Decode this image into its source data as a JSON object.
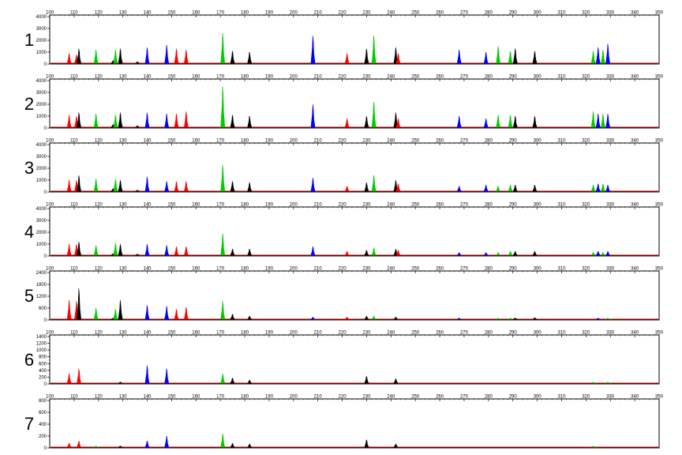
{
  "colors": {
    "red": "#ff0000",
    "green": "#00cc00",
    "blue": "#0000ff",
    "black": "#000000",
    "baseline": "#cc0000"
  },
  "chart_data": [
    {
      "type": "area",
      "panel": "1",
      "x_ticks": [
        100,
        110,
        120,
        130,
        140,
        150,
        160,
        170,
        180,
        190,
        200,
        210,
        220,
        230,
        240,
        250,
        260,
        270,
        280,
        290,
        300,
        310,
        320,
        330,
        340,
        350
      ],
      "y_ticks": [
        0,
        1000,
        2000,
        3000,
        4000
      ],
      "ylim": [
        0,
        4000
      ],
      "xlim": [
        100,
        350
      ],
      "peaks": [
        [
          108,
          900,
          "red"
        ],
        [
          111,
          800,
          "red"
        ],
        [
          112,
          1300,
          "black"
        ],
        [
          119,
          1200,
          "green"
        ],
        [
          126,
          300,
          "black"
        ],
        [
          127,
          1200,
          "green"
        ],
        [
          129,
          1300,
          "black"
        ],
        [
          136,
          200,
          "black"
        ],
        [
          140,
          1400,
          "blue"
        ],
        [
          148,
          1600,
          "blue"
        ],
        [
          152,
          1300,
          "red"
        ],
        [
          156,
          1200,
          "red"
        ],
        [
          171,
          2600,
          "green"
        ],
        [
          175,
          1100,
          "black"
        ],
        [
          182,
          1000,
          "black"
        ],
        [
          208,
          2400,
          "blue"
        ],
        [
          222,
          900,
          "red"
        ],
        [
          230,
          1300,
          "black"
        ],
        [
          233,
          2400,
          "green"
        ],
        [
          242,
          1400,
          "black"
        ],
        [
          243,
          900,
          "red"
        ],
        [
          268,
          1200,
          "blue"
        ],
        [
          279,
          1000,
          "blue"
        ],
        [
          284,
          1500,
          "green"
        ],
        [
          289,
          1100,
          "green"
        ],
        [
          291,
          1300,
          "black"
        ],
        [
          299,
          1100,
          "black"
        ],
        [
          323,
          1100,
          "green"
        ],
        [
          325,
          1400,
          "blue"
        ],
        [
          327,
          1200,
          "green"
        ],
        [
          329,
          1700,
          "blue"
        ]
      ]
    },
    {
      "type": "area",
      "panel": "2",
      "x_ticks": [
        100,
        110,
        120,
        130,
        140,
        150,
        160,
        170,
        180,
        190,
        200,
        210,
        220,
        230,
        240,
        250,
        260,
        270,
        280,
        290,
        300,
        310,
        320,
        330,
        340,
        350
      ],
      "y_ticks": [
        0,
        1000,
        2000,
        3000,
        4000
      ],
      "ylim": [
        0,
        4000
      ],
      "xlim": [
        100,
        350
      ],
      "peaks": [
        [
          108,
          1100,
          "red"
        ],
        [
          111,
          1000,
          "red"
        ],
        [
          112,
          1300,
          "black"
        ],
        [
          119,
          1200,
          "green"
        ],
        [
          126,
          300,
          "black"
        ],
        [
          127,
          1100,
          "green"
        ],
        [
          129,
          1300,
          "black"
        ],
        [
          136,
          200,
          "black"
        ],
        [
          140,
          1300,
          "blue"
        ],
        [
          148,
          1200,
          "blue"
        ],
        [
          152,
          1200,
          "red"
        ],
        [
          156,
          1400,
          "red"
        ],
        [
          171,
          3500,
          "green"
        ],
        [
          175,
          1100,
          "black"
        ],
        [
          182,
          1000,
          "black"
        ],
        [
          208,
          2000,
          "blue"
        ],
        [
          222,
          800,
          "red"
        ],
        [
          230,
          1000,
          "black"
        ],
        [
          233,
          2200,
          "green"
        ],
        [
          242,
          1300,
          "black"
        ],
        [
          243,
          800,
          "red"
        ],
        [
          268,
          1000,
          "blue"
        ],
        [
          279,
          800,
          "blue"
        ],
        [
          284,
          1100,
          "green"
        ],
        [
          289,
          1100,
          "green"
        ],
        [
          291,
          1000,
          "black"
        ],
        [
          299,
          1000,
          "black"
        ],
        [
          323,
          1400,
          "green"
        ],
        [
          325,
          1200,
          "blue"
        ],
        [
          327,
          1200,
          "green"
        ],
        [
          329,
          1200,
          "blue"
        ]
      ]
    },
    {
      "type": "area",
      "panel": "3",
      "x_ticks": [
        100,
        110,
        120,
        130,
        140,
        150,
        160,
        170,
        180,
        190,
        200,
        210,
        220,
        230,
        240,
        250,
        260,
        270,
        280,
        290,
        300,
        310,
        320,
        330,
        340,
        350
      ],
      "y_ticks": [
        0,
        1000,
        2000,
        3000,
        4000
      ],
      "ylim": [
        0,
        4000
      ],
      "xlim": [
        100,
        350
      ],
      "peaks": [
        [
          108,
          1000,
          "red"
        ],
        [
          111,
          1000,
          "red"
        ],
        [
          112,
          1400,
          "black"
        ],
        [
          119,
          1100,
          "green"
        ],
        [
          126,
          300,
          "black"
        ],
        [
          127,
          1100,
          "green"
        ],
        [
          129,
          1000,
          "black"
        ],
        [
          136,
          150,
          "black"
        ],
        [
          140,
          1300,
          "blue"
        ],
        [
          148,
          900,
          "blue"
        ],
        [
          152,
          900,
          "red"
        ],
        [
          156,
          900,
          "red"
        ],
        [
          171,
          2300,
          "green"
        ],
        [
          175,
          900,
          "black"
        ],
        [
          182,
          800,
          "black"
        ],
        [
          208,
          1200,
          "blue"
        ],
        [
          222,
          500,
          "red"
        ],
        [
          230,
          800,
          "black"
        ],
        [
          233,
          1400,
          "green"
        ],
        [
          242,
          1000,
          "black"
        ],
        [
          243,
          700,
          "red"
        ],
        [
          268,
          500,
          "blue"
        ],
        [
          279,
          600,
          "blue"
        ],
        [
          284,
          500,
          "green"
        ],
        [
          289,
          600,
          "green"
        ],
        [
          291,
          600,
          "black"
        ],
        [
          299,
          600,
          "black"
        ],
        [
          323,
          600,
          "green"
        ],
        [
          325,
          700,
          "blue"
        ],
        [
          327,
          700,
          "green"
        ],
        [
          329,
          600,
          "blue"
        ]
      ]
    },
    {
      "type": "area",
      "panel": "4",
      "x_ticks": [
        100,
        110,
        120,
        130,
        140,
        150,
        160,
        170,
        180,
        190,
        200,
        210,
        220,
        230,
        240,
        250,
        260,
        270,
        280,
        290,
        300,
        310,
        320,
        330,
        340,
        350
      ],
      "y_ticks": [
        0,
        1000,
        2000,
        3000,
        4000
      ],
      "ylim": [
        0,
        4000
      ],
      "xlim": [
        100,
        350
      ],
      "peaks": [
        [
          108,
          1000,
          "red"
        ],
        [
          111,
          1000,
          "red"
        ],
        [
          112,
          1200,
          "black"
        ],
        [
          119,
          900,
          "green"
        ],
        [
          126,
          200,
          "black"
        ],
        [
          127,
          1100,
          "green"
        ],
        [
          129,
          1000,
          "black"
        ],
        [
          136,
          100,
          "black"
        ],
        [
          140,
          1000,
          "blue"
        ],
        [
          148,
          900,
          "blue"
        ],
        [
          152,
          800,
          "red"
        ],
        [
          156,
          800,
          "red"
        ],
        [
          171,
          1900,
          "green"
        ],
        [
          175,
          600,
          "black"
        ],
        [
          182,
          600,
          "black"
        ],
        [
          208,
          800,
          "blue"
        ],
        [
          222,
          400,
          "red"
        ],
        [
          230,
          500,
          "black"
        ],
        [
          233,
          700,
          "green"
        ],
        [
          242,
          600,
          "black"
        ],
        [
          243,
          500,
          "red"
        ],
        [
          268,
          300,
          "blue"
        ],
        [
          279,
          300,
          "blue"
        ],
        [
          284,
          300,
          "green"
        ],
        [
          289,
          400,
          "green"
        ],
        [
          291,
          400,
          "black"
        ],
        [
          299,
          400,
          "black"
        ],
        [
          323,
          300,
          "green"
        ],
        [
          325,
          400,
          "blue"
        ],
        [
          327,
          300,
          "green"
        ],
        [
          329,
          400,
          "blue"
        ]
      ]
    },
    {
      "type": "area",
      "panel": "5",
      "x_ticks": [
        100,
        110,
        120,
        130,
        140,
        150,
        160,
        170,
        180,
        190,
        200,
        210,
        220,
        230,
        240,
        250,
        260,
        270,
        280,
        290,
        300,
        310,
        320,
        330,
        340,
        350
      ],
      "y_ticks": [
        0,
        600,
        1200,
        1800,
        2400
      ],
      "ylim": [
        0,
        2400
      ],
      "xlim": [
        100,
        350
      ],
      "peaks": [
        [
          108,
          1000,
          "red"
        ],
        [
          111,
          950,
          "red"
        ],
        [
          112,
          1600,
          "black"
        ],
        [
          119,
          600,
          "green"
        ],
        [
          126,
          100,
          "black"
        ],
        [
          127,
          550,
          "green"
        ],
        [
          129,
          1000,
          "black"
        ],
        [
          140,
          750,
          "blue"
        ],
        [
          148,
          700,
          "blue"
        ],
        [
          152,
          550,
          "red"
        ],
        [
          156,
          650,
          "red"
        ],
        [
          171,
          950,
          "green"
        ],
        [
          175,
          300,
          "black"
        ],
        [
          182,
          200,
          "black"
        ],
        [
          208,
          150,
          "blue"
        ],
        [
          222,
          150,
          "red"
        ],
        [
          230,
          200,
          "black"
        ],
        [
          233,
          200,
          "green"
        ],
        [
          242,
          150,
          "black"
        ],
        [
          268,
          100,
          "blue"
        ],
        [
          284,
          60,
          "green"
        ],
        [
          289,
          80,
          "green"
        ],
        [
          291,
          100,
          "black"
        ],
        [
          299,
          120,
          "black"
        ],
        [
          325,
          80,
          "blue"
        ],
        [
          329,
          80,
          "green"
        ]
      ]
    },
    {
      "type": "area",
      "panel": "6",
      "x_ticks": [
        100,
        110,
        120,
        130,
        140,
        150,
        160,
        170,
        180,
        190,
        200,
        210,
        220,
        230,
        240,
        250,
        260,
        270,
        280,
        290,
        300,
        310,
        320,
        330,
        340,
        350
      ],
      "y_ticks": [
        0,
        200,
        400,
        600,
        800,
        1000,
        1200,
        1400
      ],
      "ylim": [
        0,
        1400
      ],
      "xlim": [
        100,
        350
      ],
      "peaks": [
        [
          108,
          300,
          "red"
        ],
        [
          112,
          450,
          "red"
        ],
        [
          129,
          60,
          "black"
        ],
        [
          140,
          550,
          "blue"
        ],
        [
          148,
          450,
          "blue"
        ],
        [
          171,
          300,
          "green"
        ],
        [
          175,
          180,
          "black"
        ],
        [
          182,
          120,
          "black"
        ],
        [
          230,
          230,
          "black"
        ],
        [
          242,
          160,
          "black"
        ],
        [
          323,
          30,
          "green"
        ],
        [
          329,
          30,
          "green"
        ]
      ]
    },
    {
      "type": "area",
      "panel": "7",
      "x_ticks": [
        100,
        110,
        120,
        130,
        140,
        150,
        160,
        170,
        180,
        190,
        200,
        210,
        220,
        230,
        240,
        250,
        260,
        270,
        280,
        290,
        300,
        310,
        320,
        330,
        340,
        350
      ],
      "y_ticks": [
        0,
        200,
        400,
        600,
        800
      ],
      "ylim": [
        0,
        800
      ],
      "xlim": [
        100,
        350
      ],
      "peaks": [
        [
          108,
          80,
          "red"
        ],
        [
          112,
          120,
          "red"
        ],
        [
          119,
          30,
          "green"
        ],
        [
          129,
          30,
          "black"
        ],
        [
          140,
          120,
          "blue"
        ],
        [
          148,
          200,
          "blue"
        ],
        [
          171,
          240,
          "green"
        ],
        [
          175,
          80,
          "black"
        ],
        [
          182,
          70,
          "black"
        ],
        [
          230,
          140,
          "black"
        ],
        [
          242,
          70,
          "black"
        ],
        [
          323,
          30,
          "green"
        ]
      ]
    }
  ]
}
